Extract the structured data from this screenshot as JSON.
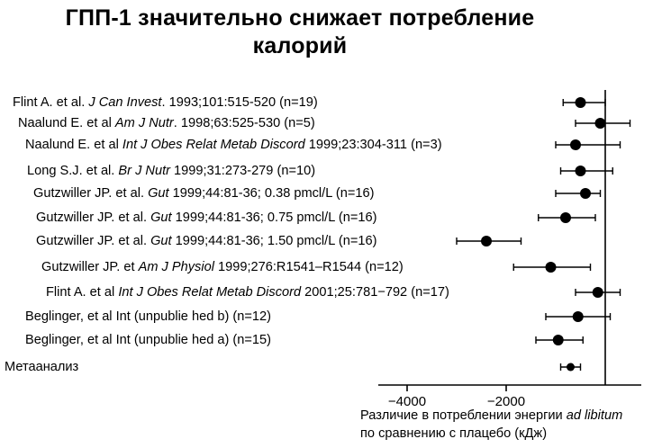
{
  "chart_data": {
    "type": "scatter",
    "subtype": "forest-plot",
    "title": "ГПП-1 значительно снижает потребление калорий",
    "unit": "кДж",
    "x_axis": {
      "ticks": [
        -4000,
        -2000
      ],
      "tick_labels": [
        "−4000",
        "−2000"
      ],
      "zero_line": 0,
      "range": [
        -4600,
        700
      ],
      "label_line1_segments": [
        {
          "t": "Различие в потреблении энергии "
        },
        {
          "t": "ad libitum",
          "i": true
        }
      ],
      "label_line2": "по сравнению с плацебо (кДж)"
    },
    "studies": [
      {
        "segments": [
          {
            "t": "Flint A. et al. "
          },
          {
            "t": "J Can Invest",
            "i": true
          },
          {
            "t": ". 1993;101:515-520 (n=19)"
          }
        ],
        "n": 19,
        "point": -500,
        "ci": [
          -850,
          0
        ]
      },
      {
        "segments": [
          {
            "t": "Naalund E. et al "
          },
          {
            "t": "Am J Nutr",
            "i": true
          },
          {
            "t": ". 1998;63:525-530 (n=5)"
          }
        ],
        "n": 5,
        "point": -100,
        "ci": [
          -600,
          500
        ]
      },
      {
        "segments": [
          {
            "t": "Naalund E. et al "
          },
          {
            "t": "Int J Obes Relat Metab Discord",
            "i": true
          },
          {
            "t": " 1999;23:304-311 (n=3)"
          }
        ],
        "n": 3,
        "point": -600,
        "ci": [
          -1000,
          300
        ]
      },
      {
        "segments": [
          {
            "t": "Long S.J. et al. "
          },
          {
            "t": "Br J Nutr",
            "i": true
          },
          {
            "t": " 1999;31:273-279 (n=10)"
          }
        ],
        "n": 10,
        "point": -500,
        "ci": [
          -900,
          150
        ]
      },
      {
        "segments": [
          {
            "t": "Gutzwiller JP. et al. "
          },
          {
            "t": "Gut",
            "i": true
          },
          {
            "t": " 1999;44:81-36; 0.38 pmcl/L (n=16)"
          }
        ],
        "n": 16,
        "point": -400,
        "ci": [
          -1000,
          -100
        ]
      },
      {
        "segments": [
          {
            "t": "Gutzwiller JP. et al. "
          },
          {
            "t": "Gut",
            "i": true
          },
          {
            "t": " 1999;44:81-36; 0.75 pmcl/L (n=16)"
          }
        ],
        "n": 16,
        "point": -800,
        "ci": [
          -1350,
          -200
        ]
      },
      {
        "segments": [
          {
            "t": "Gutzwiller JP. et al. "
          },
          {
            "t": "Gut",
            "i": true
          },
          {
            "t": " 1999;44:81-36; 1.50 pmcl/L (n=16)"
          }
        ],
        "n": 16,
        "point": -2400,
        "ci": [
          -3000,
          -1700
        ]
      },
      {
        "segments": [
          {
            "t": "Gutzwiller JP. et "
          },
          {
            "t": "Am J Physiol",
            "i": true
          },
          {
            "t": " 1999;276:R1541–R1544 (n=12)"
          }
        ],
        "n": 12,
        "point": -1100,
        "ci": [
          -1850,
          -300
        ]
      },
      {
        "segments": [
          {
            "t": "Flint A. et al "
          },
          {
            "t": "Int J Obes Relat Metab Discord",
            "i": true
          },
          {
            "t": " 2001;25:781−792 (n=17)"
          }
        ],
        "n": 17,
        "point": -150,
        "ci": [
          -600,
          300
        ]
      },
      {
        "segments": [
          {
            "t": "Beglinger, et al Int (unpublie hed b) (n=12)"
          }
        ],
        "n": 12,
        "point": -550,
        "ci": [
          -1200,
          100
        ]
      },
      {
        "segments": [
          {
            "t": "Beglinger, et al Int (unpublie hed a) (n=15)"
          }
        ],
        "n": 15,
        "point": -950,
        "ci": [
          -1400,
          -450
        ]
      },
      {
        "segments": [
          {
            "t": "Метаанализ"
          }
        ],
        "point": -700,
        "ci": [
          -900,
          -500
        ],
        "meta": true
      }
    ]
  }
}
